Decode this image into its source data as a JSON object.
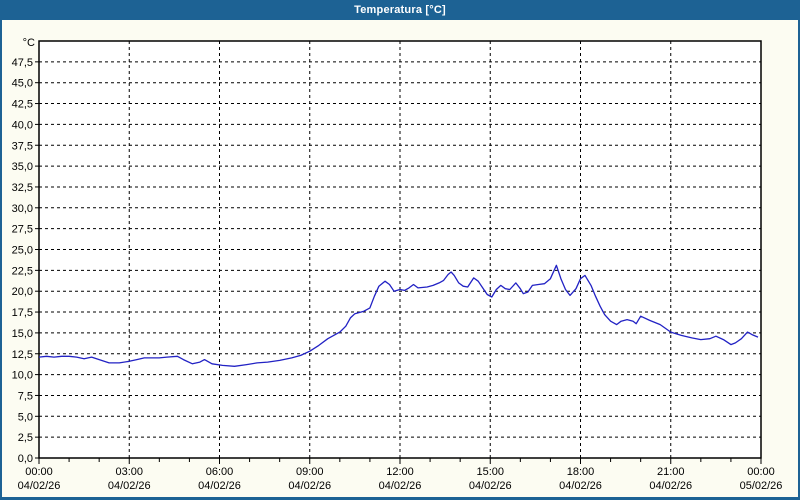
{
  "chart_data": {
    "type": "line",
    "title": "Temperatura [°C]",
    "grid": "dashed",
    "legend": "none",
    "colors": {
      "titlebar": "#1d6294",
      "window_border": "#1d6294",
      "background": "#fcfcf2",
      "plot_background": "#ffffff",
      "grid_line": "#000000",
      "frame": "#000000",
      "series_line": "#2222c4",
      "tick_text": "#000000"
    },
    "y_axis": {
      "unit_label": "°C",
      "min": 0,
      "max": 50,
      "tick_step": 2.5,
      "first_tick_label": "0,0",
      "last_tick_label": "47,5",
      "decimal_separator": ","
    },
    "x_axis": {
      "start_hour": 0,
      "end_hour": 24,
      "minor_tick_hours": 1,
      "major_tick_hours": 3,
      "major_ticks": [
        {
          "time": "00:00",
          "date": "04/02/26"
        },
        {
          "time": "03:00",
          "date": "04/02/26"
        },
        {
          "time": "06:00",
          "date": "04/02/26"
        },
        {
          "time": "09:00",
          "date": "04/02/26"
        },
        {
          "time": "12:00",
          "date": "04/02/26"
        },
        {
          "time": "15:00",
          "date": "04/02/26"
        },
        {
          "time": "18:00",
          "date": "04/02/26"
        },
        {
          "time": "21:00",
          "date": "04/02/26"
        },
        {
          "time": "00:00",
          "date": "05/02/26"
        }
      ]
    },
    "series": [
      {
        "name": "Temperatura",
        "color": "#2222c4",
        "points": [
          [
            0.0,
            12.1
          ],
          [
            0.25,
            12.2
          ],
          [
            0.5,
            12.1
          ],
          [
            0.75,
            12.2
          ],
          [
            1.0,
            12.2
          ],
          [
            1.25,
            12.1
          ],
          [
            1.5,
            11.9
          ],
          [
            1.75,
            12.1
          ],
          [
            2.0,
            11.8
          ],
          [
            2.33,
            11.4
          ],
          [
            2.67,
            11.4
          ],
          [
            3.0,
            11.6
          ],
          [
            3.25,
            11.8
          ],
          [
            3.5,
            12.0
          ],
          [
            4.0,
            12.0
          ],
          [
            4.25,
            12.1
          ],
          [
            4.6,
            12.2
          ],
          [
            4.8,
            11.8
          ],
          [
            5.1,
            11.3
          ],
          [
            5.35,
            11.5
          ],
          [
            5.5,
            11.8
          ],
          [
            5.75,
            11.3
          ],
          [
            6.1,
            11.1
          ],
          [
            6.5,
            11.0
          ],
          [
            6.9,
            11.2
          ],
          [
            7.25,
            11.4
          ],
          [
            7.6,
            11.5
          ],
          [
            8.0,
            11.7
          ],
          [
            8.4,
            12.0
          ],
          [
            8.7,
            12.3
          ],
          [
            9.0,
            12.8
          ],
          [
            9.3,
            13.5
          ],
          [
            9.6,
            14.3
          ],
          [
            10.0,
            15.1
          ],
          [
            10.2,
            15.8
          ],
          [
            10.35,
            16.8
          ],
          [
            10.5,
            17.3
          ],
          [
            10.8,
            17.6
          ],
          [
            11.0,
            18.0
          ],
          [
            11.15,
            19.4
          ],
          [
            11.3,
            20.6
          ],
          [
            11.5,
            21.2
          ],
          [
            11.65,
            20.8
          ],
          [
            11.8,
            20.0
          ],
          [
            12.0,
            20.2
          ],
          [
            12.15,
            20.1
          ],
          [
            12.3,
            20.4
          ],
          [
            12.45,
            20.8
          ],
          [
            12.6,
            20.4
          ],
          [
            12.9,
            20.5
          ],
          [
            13.1,
            20.7
          ],
          [
            13.3,
            21.0
          ],
          [
            13.45,
            21.3
          ],
          [
            13.6,
            22.0
          ],
          [
            13.7,
            22.3
          ],
          [
            13.8,
            21.9
          ],
          [
            13.95,
            21.0
          ],
          [
            14.1,
            20.6
          ],
          [
            14.25,
            20.5
          ],
          [
            14.45,
            21.6
          ],
          [
            14.6,
            21.2
          ],
          [
            14.75,
            20.4
          ],
          [
            14.9,
            19.6
          ],
          [
            15.05,
            19.3
          ],
          [
            15.2,
            20.2
          ],
          [
            15.35,
            20.7
          ],
          [
            15.5,
            20.3
          ],
          [
            15.65,
            20.2
          ],
          [
            15.85,
            21.0
          ],
          [
            16.0,
            20.3
          ],
          [
            16.1,
            19.7
          ],
          [
            16.25,
            19.9
          ],
          [
            16.4,
            20.7
          ],
          [
            16.6,
            20.8
          ],
          [
            16.8,
            20.9
          ],
          [
            17.0,
            21.5
          ],
          [
            17.2,
            23.1
          ],
          [
            17.35,
            21.5
          ],
          [
            17.5,
            20.2
          ],
          [
            17.65,
            19.5
          ],
          [
            17.85,
            20.3
          ],
          [
            18.0,
            21.5
          ],
          [
            18.15,
            21.9
          ],
          [
            18.35,
            20.7
          ],
          [
            18.5,
            19.4
          ],
          [
            18.65,
            18.2
          ],
          [
            18.8,
            17.2
          ],
          [
            19.0,
            16.4
          ],
          [
            19.2,
            16.0
          ],
          [
            19.35,
            16.4
          ],
          [
            19.55,
            16.6
          ],
          [
            19.75,
            16.4
          ],
          [
            19.85,
            16.1
          ],
          [
            20.0,
            17.0
          ],
          [
            20.3,
            16.5
          ],
          [
            20.65,
            16.0
          ],
          [
            21.0,
            15.1
          ],
          [
            21.35,
            14.7
          ],
          [
            21.7,
            14.4
          ],
          [
            22.0,
            14.2
          ],
          [
            22.3,
            14.3
          ],
          [
            22.5,
            14.6
          ],
          [
            22.75,
            14.2
          ],
          [
            23.0,
            13.6
          ],
          [
            23.15,
            13.8
          ],
          [
            23.35,
            14.3
          ],
          [
            23.55,
            15.1
          ],
          [
            23.7,
            14.8
          ],
          [
            23.9,
            14.5
          ]
        ]
      }
    ]
  }
}
